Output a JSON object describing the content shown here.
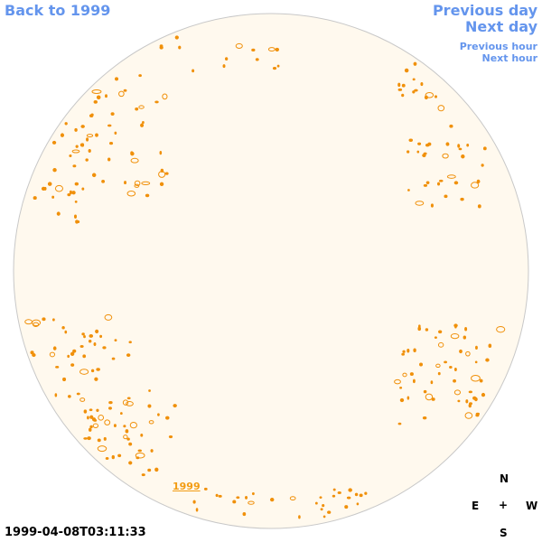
{
  "nav": {
    "back": "Back to 1999",
    "previous_day": "Previous day",
    "next_day": "Next day",
    "previous_hour": "Previous hour",
    "next_hour": "Next hour"
  },
  "disk": {
    "year_link": "1999"
  },
  "timestamp": "1999-04-08T03:11:33",
  "compass": {
    "north": "N",
    "east": "E",
    "center": "+",
    "west": "W",
    "south": "S"
  }
}
